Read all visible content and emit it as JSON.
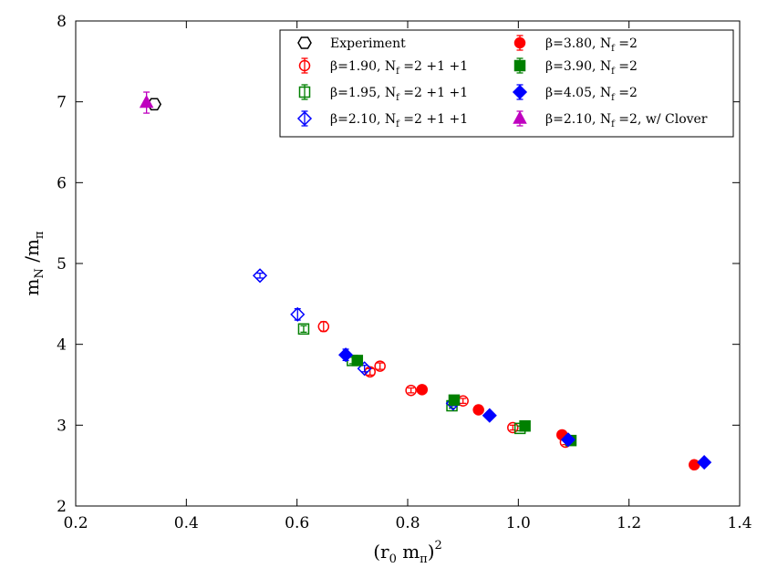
{
  "chart_data": {
    "type": "scatter",
    "title": "",
    "xlabel": "(r₀ m_π)²",
    "ylabel": "m_N / m_π",
    "xlim": [
      0.2,
      1.4
    ],
    "ylim": [
      2,
      8
    ],
    "x_ticks": [
      "0.2",
      "0.4",
      "0.6",
      "0.8",
      "1.0",
      "1.2",
      "1.4"
    ],
    "y_ticks": [
      "2",
      "3",
      "4",
      "5",
      "6",
      "7",
      "8"
    ],
    "grid": false,
    "legend_position": "top-right",
    "series": [
      {
        "name": "Experiment",
        "label_parts": [
          "Experiment"
        ],
        "marker": "hexagon",
        "filled": false,
        "color": "#000000",
        "points": [
          {
            "x": 0.342,
            "y": 6.97,
            "err": 0.0
          }
        ]
      },
      {
        "name": "β=1.90, Nf=2+1+1",
        "label_parts": [
          "β=1.90, N",
          "f",
          " =2 +1 +1"
        ],
        "marker": "circle",
        "filled": false,
        "color": "#ff0000",
        "points": [
          {
            "x": 0.648,
            "y": 4.22,
            "err": 0.06
          },
          {
            "x": 0.732,
            "y": 3.66,
            "err": 0.04
          },
          {
            "x": 0.75,
            "y": 3.73,
            "err": 0.04
          },
          {
            "x": 0.806,
            "y": 3.43,
            "err": 0.03
          },
          {
            "x": 0.9,
            "y": 3.3,
            "err": 0.03
          },
          {
            "x": 0.99,
            "y": 2.97,
            "err": 0.03
          },
          {
            "x": 1.085,
            "y": 2.79,
            "err": 0.03
          }
        ]
      },
      {
        "name": "β=1.95, Nf=2+1+1",
        "label_parts": [
          "β=1.95, N",
          "f",
          " =2 +1 +1"
        ],
        "marker": "square",
        "filled": false,
        "color": "#008000",
        "points": [
          {
            "x": 0.612,
            "y": 4.19,
            "err": 0.04
          },
          {
            "x": 0.7,
            "y": 3.8,
            "err": 0.04
          },
          {
            "x": 0.88,
            "y": 3.24,
            "err": 0.03
          },
          {
            "x": 1.003,
            "y": 2.96,
            "err": 0.03
          }
        ]
      },
      {
        "name": "β=2.10, Nf=2+1+1",
        "label_parts": [
          "β=2.10, N",
          "f",
          " =2 +1 +1"
        ],
        "marker": "diamond",
        "filled": false,
        "color": "#0000ff",
        "points": [
          {
            "x": 0.533,
            "y": 4.85,
            "err": 0.03
          },
          {
            "x": 0.601,
            "y": 4.37,
            "err": 0.07
          },
          {
            "x": 0.722,
            "y": 3.7,
            "err": 0.04
          },
          {
            "x": 0.882,
            "y": 3.27,
            "err": 0.03
          }
        ]
      },
      {
        "name": "β=3.80, Nf=2",
        "label_parts": [
          "β=3.80, N",
          "f",
          " =2"
        ],
        "marker": "circle",
        "filled": true,
        "color": "#ff0000",
        "points": [
          {
            "x": 0.826,
            "y": 3.44,
            "err": 0.03
          },
          {
            "x": 0.928,
            "y": 3.19,
            "err": 0.03
          },
          {
            "x": 1.079,
            "y": 2.88,
            "err": 0.03
          },
          {
            "x": 1.318,
            "y": 2.51,
            "err": 0.02
          }
        ]
      },
      {
        "name": "β=3.90, Nf=2",
        "label_parts": [
          "β=3.90, N",
          "f",
          " =2"
        ],
        "marker": "square",
        "filled": true,
        "color": "#008000",
        "points": [
          {
            "x": 0.709,
            "y": 3.8,
            "err": 0.04
          },
          {
            "x": 0.884,
            "y": 3.31,
            "err": 0.03
          },
          {
            "x": 1.012,
            "y": 2.99,
            "err": 0.03
          },
          {
            "x": 1.095,
            "y": 2.81,
            "err": 0.03
          }
        ]
      },
      {
        "name": "β=4.05, Nf=2",
        "label_parts": [
          "β=4.05, N",
          "f",
          " =2"
        ],
        "marker": "diamond",
        "filled": true,
        "color": "#0000ff",
        "points": [
          {
            "x": 0.688,
            "y": 3.87,
            "err": 0.07
          },
          {
            "x": 0.948,
            "y": 3.12,
            "err": 0.03
          },
          {
            "x": 1.09,
            "y": 2.82,
            "err": 0.03
          },
          {
            "x": 1.336,
            "y": 2.54,
            "err": 0.02
          }
        ]
      },
      {
        "name": "β=2.10, Nf=2, w/ Clover",
        "label_parts": [
          "β=2.10, N",
          "f",
          " =2, w/ Clover"
        ],
        "marker": "triangle",
        "filled": true,
        "color": "#bf00bf",
        "points": [
          {
            "x": 0.328,
            "y": 6.99,
            "err": 0.13
          }
        ]
      }
    ]
  }
}
